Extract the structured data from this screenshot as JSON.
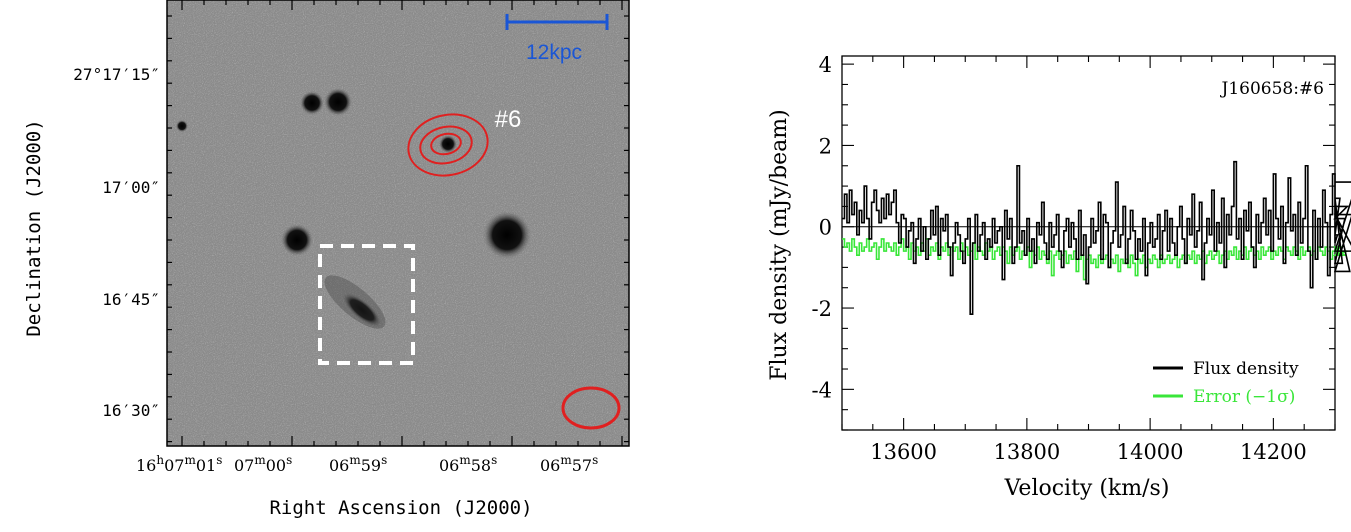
{
  "image_panel": {
    "ylabel": "Declination (J2000)",
    "xlabel": "Right Ascension (J2000)",
    "yticks": [
      "27°17′15″",
      "17′00″",
      "16′45″",
      "16′30″"
    ],
    "xticks": [
      {
        "h": "16",
        "hsup": "h",
        "m": "07",
        "msup": "m",
        "s": "01",
        "ssup": "s"
      },
      {
        "m": "07",
        "msup": "m",
        "s": "00",
        "ssup": "s"
      },
      {
        "m": "06",
        "msup": "m",
        "s": "59",
        "ssup": "s"
      },
      {
        "m": "06",
        "msup": "m",
        "s": "58",
        "ssup": "s"
      },
      {
        "m": "06",
        "msup": "m",
        "s": "57",
        "ssup": "s"
      }
    ],
    "scalebar_label": "12kpc",
    "source_label": "#6",
    "colors": {
      "scalebar": "#1a56d6",
      "contour": "#e02020",
      "box": "#ffffff"
    }
  },
  "chart_data": {
    "type": "line",
    "title": "J160658:#6",
    "xlabel": "Velocity (km/s)",
    "ylabel": "Flux density (mJy/beam)",
    "xlim": [
      13500,
      14300
    ],
    "ylim": [
      -5,
      4.2
    ],
    "xticks": [
      13600,
      13800,
      14000,
      14200
    ],
    "yticks": [
      4,
      2,
      0,
      -2,
      -4
    ],
    "series": [
      {
        "name": "Flux density",
        "color": "#000000",
        "step": 4,
        "x0": 13500,
        "values": [
          0.2,
          0.8,
          0.1,
          0.9,
          0.3,
          0.6,
          -0.2,
          0.4,
          0.1,
          1.0,
          0.2,
          -0.3,
          0.6,
          0.9,
          0.4,
          0.1,
          0.7,
          0.2,
          0.8,
          0.3,
          0.6,
          0.9,
          0.1,
          -0.4,
          0.3,
          0.2,
          -0.5,
          -0.1,
          0.1,
          -0.9,
          -0.3,
          0.2,
          -0.6,
          0.0,
          -0.8,
          -0.3,
          0.4,
          -0.2,
          0.5,
          -0.7,
          0.2,
          -0.1,
          0.3,
          -0.5,
          -1.2,
          -0.4,
          0.1,
          -0.2,
          -0.6,
          -0.9,
          -0.3,
          0.2,
          -2.15,
          -0.4,
          0.3,
          -0.6,
          -0.2,
          0.1,
          -0.8,
          -0.3,
          -0.5,
          0.2,
          -0.4,
          -0.1,
          0.0,
          -1.3,
          0.4,
          -0.3,
          0.2,
          -0.9,
          -0.5,
          1.5,
          -0.4,
          -0.1,
          -0.7,
          0.2,
          -0.6,
          -0.3,
          -0.9,
          0.1,
          -0.2,
          0.6,
          -0.4,
          -0.8,
          0.1,
          -0.5,
          -0.2,
          0.3,
          -0.6,
          -1.0,
          -0.1,
          0.2,
          -0.5,
          0.1,
          -0.3,
          -0.8,
          0.4,
          -0.7,
          -0.2,
          -1.4,
          -0.5,
          0.2,
          -0.4,
          -0.1,
          0.6,
          -0.8,
          0.3,
          0.1,
          -1.0,
          -0.4,
          -0.1,
          1.1,
          -0.5,
          -0.2,
          0.5,
          -0.9,
          -0.3,
          0.4,
          -0.1,
          -0.8,
          -0.3,
          -0.6,
          0.2,
          -1.2,
          -0.4,
          0.1,
          -0.5,
          -0.3,
          0.3,
          -0.8,
          -0.1,
          0.4,
          -0.6,
          0.2,
          -0.4,
          -0.7,
          0.0,
          0.5,
          -0.3,
          -0.9,
          0.2,
          -0.2,
          0.8,
          -0.5,
          -0.1,
          0.6,
          -1.3,
          -0.4,
          0.2,
          -0.2,
          0.9,
          -0.6,
          0.1,
          -0.4,
          0.7,
          -1.0,
          0.3,
          -0.2,
          0.5,
          1.6,
          -0.3,
          0.2,
          -0.8,
          0.4,
          -0.1,
          0.6,
          -0.5,
          -1.0,
          0.3,
          -0.4,
          0.1,
          0.7,
          -0.2,
          0.4,
          -0.6,
          1.3,
          0.2,
          -0.3,
          0.5,
          -0.9,
          0.1,
          1.2,
          -0.1,
          0.3,
          -0.7,
          0.6,
          -0.4,
          0.2,
          1.5,
          -0.6,
          -1.5,
          0.4,
          -0.8,
          0.2,
          -0.5,
          0.9,
          0.1,
          -1.2,
          0.3,
          1.3,
          -0.4,
          -0.2,
          0.7,
          -0.9,
          0.2,
          0.5,
          -1.1,
          0.3,
          -0.6,
          1.1
        ],
        "note": ""
      },
      {
        "name": "Error (−1σ)",
        "color": "#39e639",
        "step": 4,
        "x0": 13500,
        "values": [
          -0.3,
          -0.5,
          -0.4,
          -0.6,
          -0.3,
          -0.5,
          -0.7,
          -0.4,
          -0.6,
          -0.5,
          -0.3,
          -0.6,
          -0.5,
          -0.4,
          -0.8,
          -0.5,
          -0.3,
          -0.6,
          -0.4,
          -0.5,
          -0.6,
          -0.4,
          -0.7,
          -0.5,
          -0.3,
          -0.6,
          -0.5,
          -0.8,
          -0.4,
          -0.6,
          -0.5,
          -0.7,
          -0.4,
          -0.6,
          -0.3,
          -0.7,
          -0.5,
          -0.6,
          -0.4,
          -0.8,
          -0.5,
          -0.6,
          -0.4,
          -0.7,
          -0.5,
          -0.6,
          -0.5,
          -0.8,
          -0.4,
          -0.6,
          -0.5,
          -0.7,
          -0.6,
          -0.4,
          -0.8,
          -0.5,
          -0.6,
          -0.7,
          -0.4,
          -0.6,
          -0.5,
          -0.8,
          -0.6,
          -0.5,
          -0.7,
          -0.5,
          -0.6,
          -0.9,
          -0.5,
          -0.7,
          -0.6,
          -0.5,
          -0.8,
          -0.6,
          -0.7,
          -0.5,
          -1.0,
          -0.6,
          -0.7,
          -0.5,
          -0.8,
          -0.6,
          -0.7,
          -0.9,
          -0.6,
          -1.2,
          -0.7,
          -0.6,
          -0.8,
          -0.7,
          -0.6,
          -0.9,
          -0.7,
          -0.8,
          -0.6,
          -1.1,
          -0.8,
          -0.7,
          -1.3,
          -0.8,
          -0.7,
          -0.9,
          -0.8,
          -1.0,
          -0.7,
          -0.9,
          -0.8,
          -0.7,
          -1.0,
          -0.8,
          -0.9,
          -0.7,
          -1.1,
          -0.8,
          -0.9,
          -0.8,
          -1.0,
          -0.7,
          -0.9,
          -1.2,
          -0.8,
          -0.9,
          -0.7,
          -1.0,
          -0.8,
          -0.9,
          -0.7,
          -0.8,
          -1.0,
          -0.7,
          -0.9,
          -0.8,
          -0.7,
          -0.9,
          -0.8,
          -0.7,
          -1.0,
          -0.8,
          -0.7,
          -0.9,
          -0.7,
          -0.8,
          -0.6,
          -0.9,
          -0.7,
          -0.8,
          -0.6,
          -0.9,
          -0.7,
          -0.6,
          -0.8,
          -0.7,
          -0.6,
          -0.9,
          -0.7,
          -0.6,
          -0.8,
          -0.6,
          -0.7,
          -0.5,
          -0.8,
          -0.6,
          -0.7,
          -0.5,
          -0.8,
          -0.6,
          -0.5,
          -0.7,
          -0.6,
          -0.8,
          -0.5,
          -0.7,
          -0.6,
          -0.5,
          -0.8,
          -0.6,
          -0.7,
          -0.5,
          -0.6,
          -0.8,
          -0.5,
          -0.6,
          -0.7,
          -0.5,
          -0.6,
          -0.8,
          -0.5,
          -0.7,
          -0.6,
          -0.5,
          -0.7,
          -0.6,
          -0.8,
          -0.5,
          -0.6,
          -0.7,
          -0.5,
          -0.6,
          -0.8,
          -0.6,
          -0.5,
          -0.7,
          -0.6,
          -0.5,
          -0.7,
          -0.6
        ]
      }
    ],
    "legend": {
      "placement": "bottom-right",
      "entries": [
        "Flux density",
        "Error (−1σ)"
      ]
    },
    "zero_line": 0
  }
}
